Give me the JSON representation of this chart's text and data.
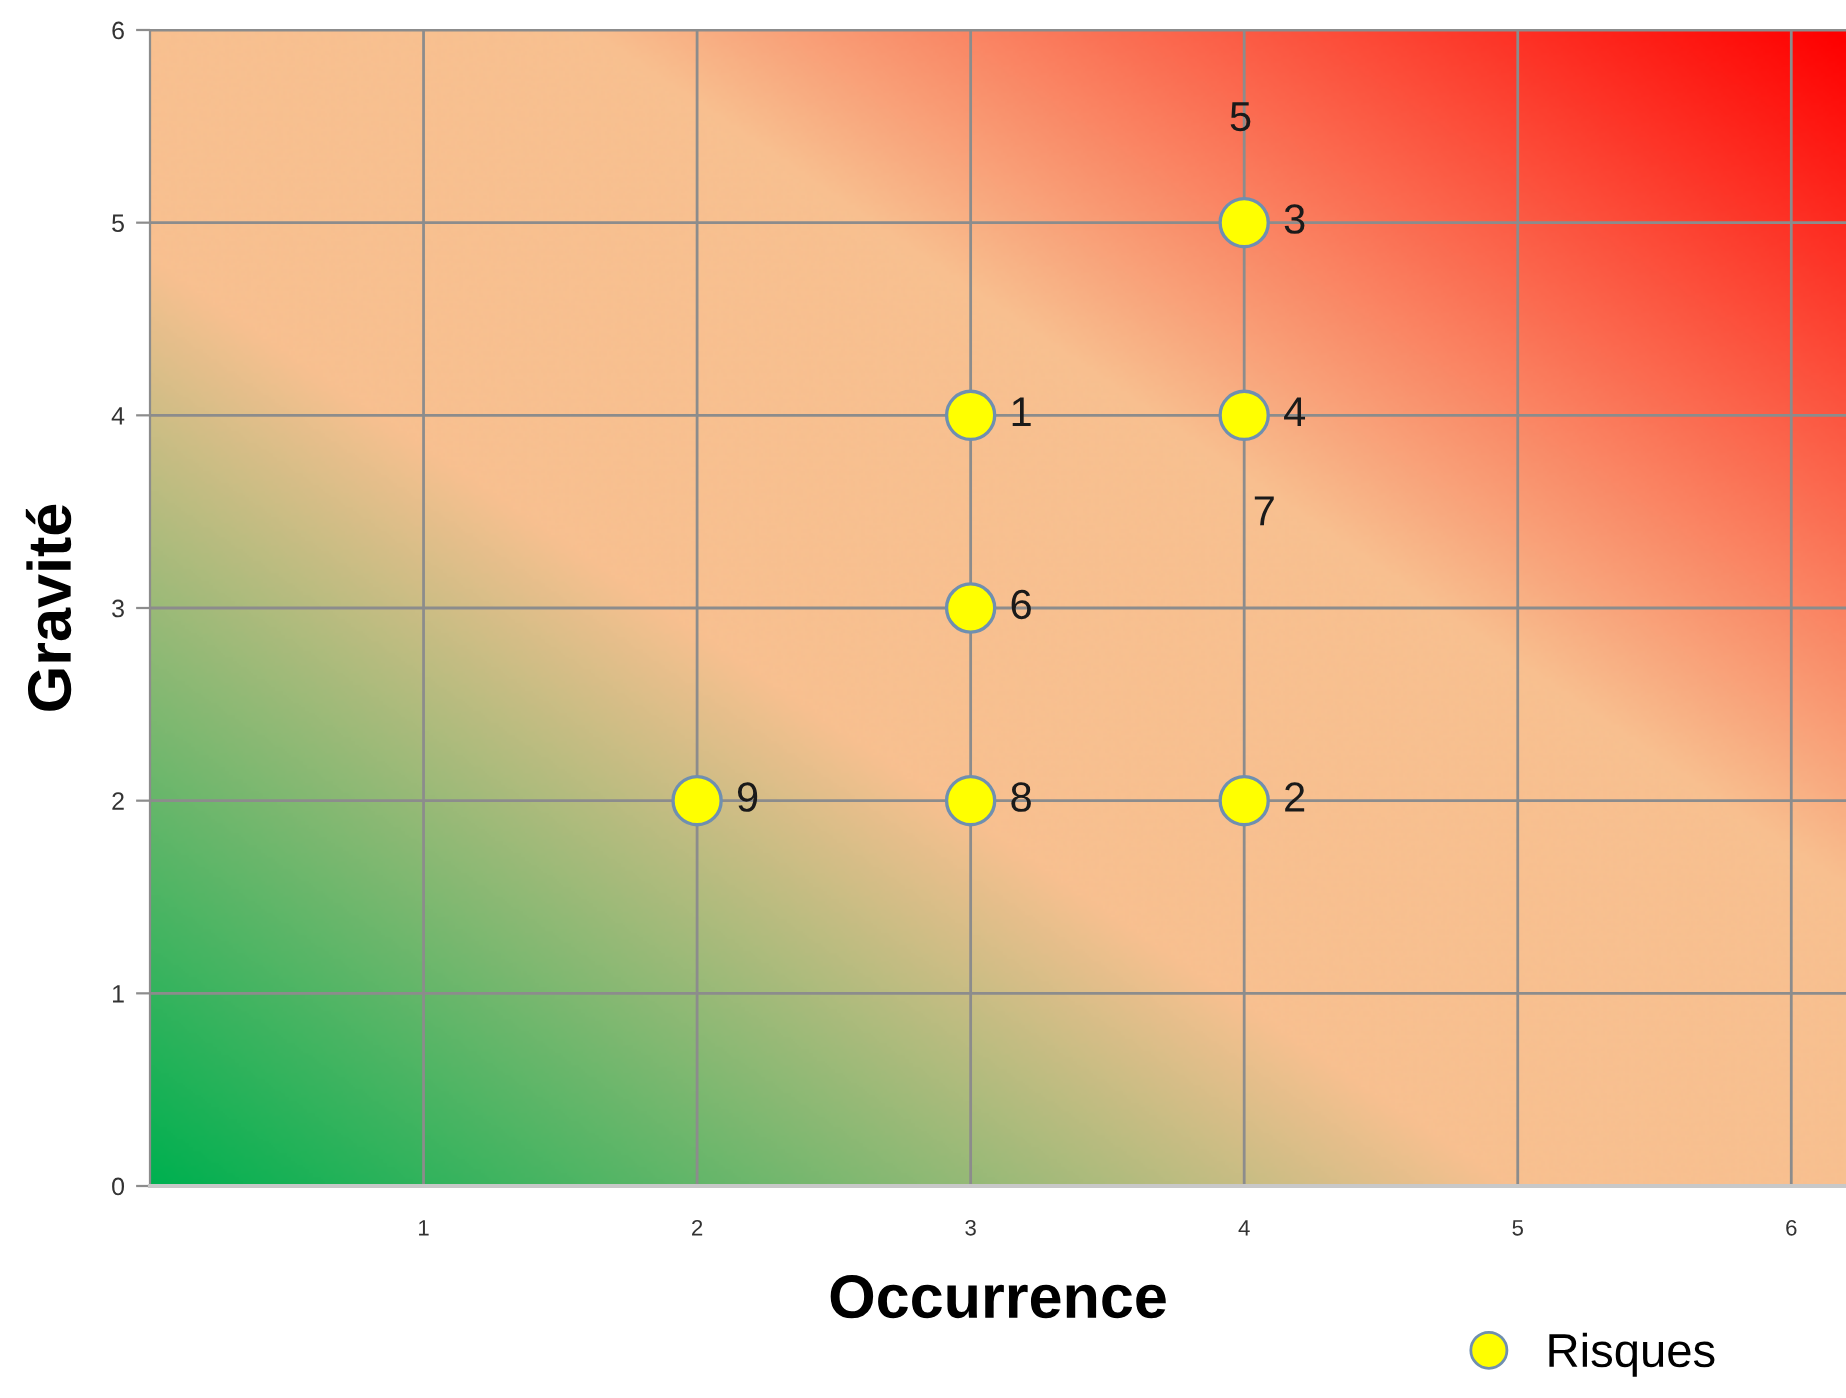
{
  "chart_data": {
    "type": "scatter",
    "xlabel": "Occurrence",
    "ylabel": "Gravité",
    "xlim": [
      0,
      6.2
    ],
    "ylim": [
      0,
      6
    ],
    "xticks": [
      1,
      2,
      3,
      4,
      5,
      6
    ],
    "yticks": [
      0,
      1,
      2,
      3,
      4,
      5,
      6
    ],
    "grid": true,
    "legend": "bottom right",
    "marker": "circle",
    "series": [
      {
        "name": "Risques",
        "color": "#ffff00",
        "x": [
          3,
          4,
          4,
          4,
          3,
          3,
          2
        ],
        "values": [
          4,
          2,
          5,
          4,
          3,
          2,
          2
        ]
      }
    ],
    "annotations": [
      {
        "text": "1",
        "x": 3,
        "y": 4
      },
      {
        "text": "2",
        "x": 4,
        "y": 2
      },
      {
        "text": "3",
        "x": 4,
        "y": 5
      },
      {
        "text": "4",
        "x": 4,
        "y": 4
      },
      "5",
      {
        "text": "6",
        "x": 3,
        "y": 3
      },
      "7",
      {
        "text": "8",
        "x": 3,
        "y": 2
      },
      {
        "text": "9",
        "x": 2,
        "y": 2
      }
    ]
  }
}
